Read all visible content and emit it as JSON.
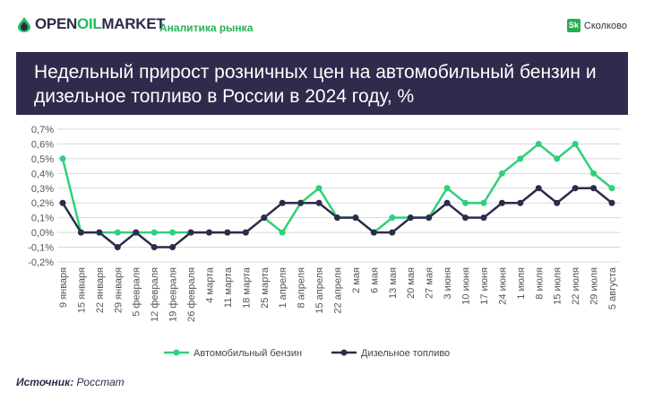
{
  "header": {
    "logo_text_open": "OPEN",
    "logo_text_oil": "OIL",
    "logo_text_market": "MARKET",
    "section": "Аналитика рынка",
    "partner_badge": "Sk",
    "partner_name": "Сколково"
  },
  "colors": {
    "gasoline": "#2fd07a",
    "diesel": "#2e2b4c",
    "band": "#2e2b4c",
    "accent": "#22b35a"
  },
  "chart_data": {
    "type": "line",
    "title": "Недельный прирост розничных цен на автомобильный бензин и дизельное топливо в России в 2024 году, %",
    "ylim": [
      -0.2,
      0.7
    ],
    "yticks": [
      "0,7%",
      "0,6%",
      "0,5%",
      "0,4%",
      "0,3%",
      "0,2%",
      "0,1%",
      "0,0%",
      "-0,1%",
      "-0,2%"
    ],
    "ytick_values": [
      0.7,
      0.6,
      0.5,
      0.4,
      0.3,
      0.2,
      0.1,
      0.0,
      -0.1,
      -0.2
    ],
    "grid": true,
    "legend_placement": "bottom",
    "categories": [
      "9 января",
      "15 января",
      "22 января",
      "29 января",
      "5 февраля",
      "12 февраля",
      "19 февраля",
      "26 февраля",
      "4 марта",
      "11 марта",
      "18 марта",
      "25 марта",
      "1 апреля",
      "8 апреля",
      "15 апреля",
      "22 апреля",
      "2 мая",
      "6 мая",
      "13 мая",
      "20 мая",
      "27 мая",
      "3 июня",
      "10 июня",
      "17 июня",
      "24 июня",
      "1 июля",
      "8 июля",
      "15 июля",
      "22 июля",
      "29 июля",
      "5 августа"
    ],
    "series": [
      {
        "name": "Автомобильный бензин",
        "values": [
          0.5,
          0.0,
          0.0,
          0.0,
          0.0,
          0.0,
          0.0,
          0.0,
          0.0,
          0.0,
          0.0,
          0.1,
          0.0,
          0.2,
          0.3,
          0.1,
          0.1,
          0.0,
          0.1,
          0.1,
          0.1,
          0.3,
          0.2,
          0.2,
          0.4,
          0.5,
          0.6,
          0.5,
          0.6,
          0.4,
          0.3
        ]
      },
      {
        "name": "Дизельное топливо",
        "values": [
          0.2,
          0.0,
          0.0,
          -0.1,
          0.0,
          -0.1,
          -0.1,
          0.0,
          0.0,
          0.0,
          0.0,
          0.1,
          0.2,
          0.2,
          0.2,
          0.1,
          0.1,
          0.0,
          0.0,
          0.1,
          0.1,
          0.2,
          0.1,
          0.1,
          0.2,
          0.2,
          0.3,
          0.2,
          0.3,
          0.3,
          0.2
        ]
      }
    ]
  },
  "source": {
    "label": "Источник:",
    "value": "Росстат"
  }
}
